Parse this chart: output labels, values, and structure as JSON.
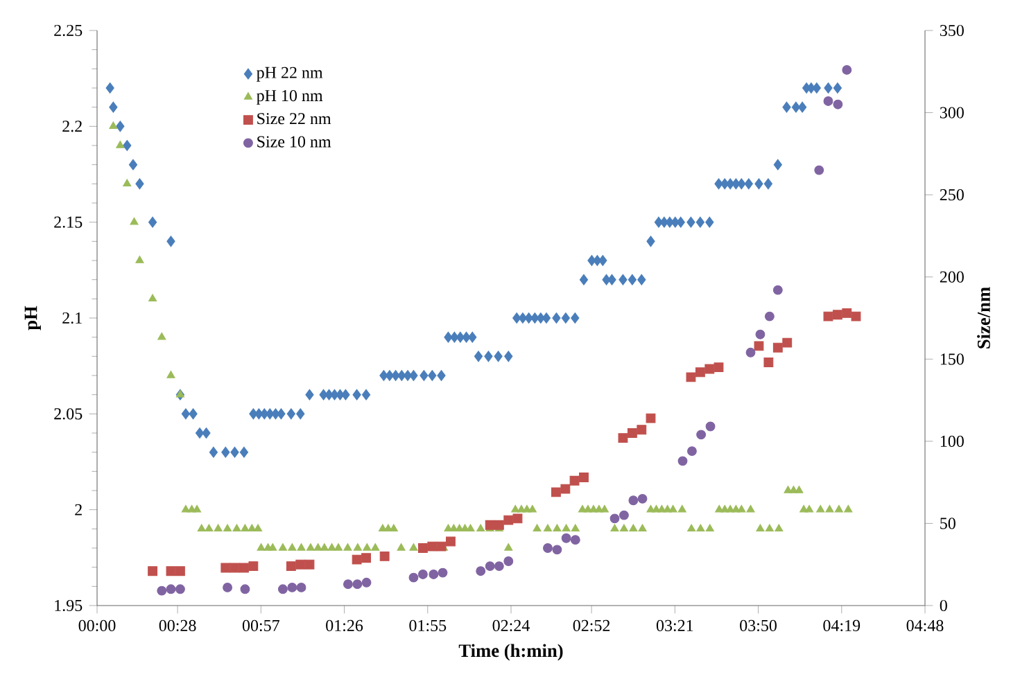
{
  "chart_data": {
    "type": "scatter",
    "xlabel": "Time (h:min)",
    "ylabel": "pH",
    "y2label": "Size/nm",
    "legend": "top left",
    "grid": false,
    "xlim": [
      0,
      4.8
    ],
    "ylim": [
      1.95,
      2.25
    ],
    "y2lim": [
      0,
      350
    ],
    "xticks": [
      {
        "value": 0,
        "label": "00:00"
      },
      {
        "value": 0.4667,
        "label": "00:28"
      },
      {
        "value": 0.95,
        "label": "00:57"
      },
      {
        "value": 1.4333,
        "label": "01:26"
      },
      {
        "value": 1.9167,
        "label": "01:55"
      },
      {
        "value": 2.4,
        "label": "02:24"
      },
      {
        "value": 2.8667,
        "label": "02:52"
      },
      {
        "value": 3.35,
        "label": "03:21"
      },
      {
        "value": 3.8333,
        "label": "03:50"
      },
      {
        "value": 4.3167,
        "label": "04:19"
      },
      {
        "value": 4.8,
        "label": "04:48"
      }
    ],
    "yticks": [
      1.95,
      2,
      2.05,
      2.1,
      2.15,
      2.2,
      2.25
    ],
    "y2ticks": [
      0,
      50,
      100,
      150,
      200,
      250,
      300,
      350
    ],
    "series": [
      {
        "name": "pH 22 nm",
        "color": "#4a7ebb",
        "marker": "diamond",
        "x": [
          0.075,
          0.094,
          0.134,
          0.174,
          0.209,
          0.247,
          0.322,
          0.428,
          0.482,
          0.514,
          0.557,
          0.595,
          0.633,
          0.675,
          0.745,
          0.798,
          0.852,
          0.906,
          0.938,
          0.97,
          1.002,
          1.035,
          1.067,
          1.125,
          1.179,
          1.232,
          1.313,
          1.345,
          1.377,
          1.409,
          1.441,
          1.506,
          1.56,
          1.662,
          1.696,
          1.731,
          1.766,
          1.801,
          1.835,
          1.895,
          1.943,
          1.996,
          2.036,
          2.072,
          2.106,
          2.141,
          2.176,
          2.211,
          2.269,
          2.326,
          2.385,
          2.433,
          2.468,
          2.503,
          2.538,
          2.572,
          2.605,
          2.663,
          2.717,
          2.771,
          2.822,
          2.868,
          2.9,
          2.932,
          2.953,
          2.985,
          3.049,
          3.103,
          3.157,
          3.21,
          3.256,
          3.288,
          3.32,
          3.352,
          3.384,
          3.443,
          3.497,
          3.551,
          3.604,
          3.639,
          3.671,
          3.704,
          3.736,
          3.778,
          3.837,
          3.891,
          3.947,
          3.998,
          4.052,
          4.089,
          4.113,
          4.14,
          4.172,
          4.239,
          4.293
        ],
        "values": [
          2.22,
          2.21,
          2.2,
          2.19,
          2.18,
          2.17,
          2.15,
          2.14,
          2.06,
          2.05,
          2.05,
          2.04,
          2.04,
          2.03,
          2.03,
          2.03,
          2.03,
          2.05,
          2.05,
          2.05,
          2.05,
          2.05,
          2.05,
          2.05,
          2.05,
          2.06,
          2.06,
          2.06,
          2.06,
          2.06,
          2.06,
          2.06,
          2.06,
          2.07,
          2.07,
          2.07,
          2.07,
          2.07,
          2.07,
          2.07,
          2.07,
          2.07,
          2.09,
          2.09,
          2.09,
          2.09,
          2.09,
          2.08,
          2.08,
          2.08,
          2.08,
          2.1,
          2.1,
          2.1,
          2.1,
          2.1,
          2.1,
          2.1,
          2.1,
          2.1,
          2.12,
          2.13,
          2.13,
          2.13,
          2.12,
          2.12,
          2.12,
          2.12,
          2.12,
          2.14,
          2.15,
          2.15,
          2.15,
          2.15,
          2.15,
          2.15,
          2.15,
          2.15,
          2.17,
          2.17,
          2.17,
          2.17,
          2.17,
          2.17,
          2.17,
          2.17,
          2.18,
          2.21,
          2.21,
          2.21,
          2.22,
          2.22,
          2.22,
          2.22,
          2.22
        ]
      },
      {
        "name": "pH 10 nm",
        "color": "#9bbb59",
        "marker": "triangle",
        "x": [
          0.094,
          0.134,
          0.174,
          0.215,
          0.247,
          0.322,
          0.375,
          0.428,
          0.482,
          0.514,
          0.549,
          0.579,
          0.606,
          0.649,
          0.702,
          0.756,
          0.81,
          0.858,
          0.898,
          0.933,
          0.951,
          0.991,
          1.018,
          1.077,
          1.131,
          1.184,
          1.238,
          1.281,
          1.318,
          1.361,
          1.399,
          1.453,
          1.511,
          1.565,
          1.613,
          1.656,
          1.688,
          1.72,
          1.763,
          1.835,
          1.903,
          1.956,
          2.01,
          2.036,
          2.068,
          2.101,
          2.133,
          2.165,
          2.224,
          2.278,
          2.331,
          2.385,
          2.425,
          2.46,
          2.492,
          2.524,
          2.551,
          2.613,
          2.667,
          2.72,
          2.773,
          2.814,
          2.846,
          2.878,
          2.91,
          2.942,
          3.001,
          3.055,
          3.109,
          3.162,
          3.21,
          3.242,
          3.274,
          3.307,
          3.339,
          3.392,
          3.446,
          3.499,
          3.553,
          3.607,
          3.639,
          3.671,
          3.704,
          3.736,
          3.789,
          3.845,
          3.899,
          3.953,
          4.006,
          4.038,
          4.07,
          4.097,
          4.129,
          4.194,
          4.247,
          4.301,
          4.355
        ],
        "values": [
          2.2,
          2.19,
          2.17,
          2.15,
          2.13,
          2.11,
          2.09,
          2.07,
          2.06,
          2.0,
          2.0,
          2.0,
          1.99,
          1.99,
          1.99,
          1.99,
          1.99,
          1.99,
          1.99,
          1.99,
          1.98,
          1.98,
          1.98,
          1.98,
          1.98,
          1.98,
          1.98,
          1.98,
          1.98,
          1.98,
          1.98,
          1.98,
          1.98,
          1.98,
          1.98,
          1.99,
          1.99,
          1.99,
          1.98,
          1.98,
          1.98,
          1.98,
          1.98,
          1.99,
          1.99,
          1.99,
          1.99,
          1.99,
          1.99,
          1.99,
          1.99,
          1.98,
          2.0,
          2.0,
          2.0,
          2.0,
          1.99,
          1.99,
          1.99,
          1.99,
          1.99,
          2.0,
          2.0,
          2.0,
          2.0,
          2.0,
          1.99,
          1.99,
          1.99,
          1.99,
          2.0,
          2.0,
          2.0,
          2.0,
          2.0,
          2.0,
          1.99,
          1.99,
          1.99,
          2.0,
          2.0,
          2.0,
          2.0,
          2.0,
          2.0,
          1.99,
          1.99,
          1.99,
          2.01,
          2.01,
          2.01,
          2.0,
          2.0,
          2.0,
          2.0,
          2.0,
          2.0
        ]
      },
      {
        "name": "Size 22 nm",
        "color": "#c0504d",
        "marker": "square",
        "axis": "y2",
        "x": [
          0.322,
          0.428,
          0.482,
          0.745,
          0.798,
          0.852,
          0.906,
          1.125,
          1.179,
          1.232,
          1.506,
          1.56,
          1.667,
          1.889,
          1.943,
          1.996,
          2.05,
          2.278,
          2.331,
          2.385,
          2.438,
          2.661,
          2.715,
          2.768,
          2.822,
          3.049,
          3.103,
          3.157,
          3.21,
          3.443,
          3.497,
          3.551,
          3.604,
          3.837,
          3.893,
          3.947,
          4.001,
          4.239,
          4.293,
          4.347,
          4.4
        ],
        "values": [
          21,
          21,
          21,
          23,
          23,
          23,
          24,
          24,
          25,
          25,
          28,
          29,
          30,
          35,
          36,
          36,
          39,
          49,
          49,
          52,
          53,
          69,
          71,
          76,
          78,
          102,
          105,
          107,
          114,
          139,
          142,
          144,
          145,
          158,
          148,
          157,
          160,
          176,
          177,
          178,
          176
        ]
      },
      {
        "name": "Size 10 nm",
        "color": "#8064a2",
        "marker": "circle",
        "axis": "y2",
        "x": [
          0.375,
          0.428,
          0.482,
          0.756,
          0.858,
          1.077,
          1.131,
          1.184,
          1.455,
          1.509,
          1.562,
          1.835,
          1.889,
          1.951,
          2.004,
          2.224,
          2.278,
          2.331,
          2.385,
          2.613,
          2.667,
          2.72,
          2.773,
          3.001,
          3.055,
          3.109,
          3.162,
          3.395,
          3.449,
          3.502,
          3.556,
          3.789,
          3.845,
          3.899,
          3.947,
          4.186,
          4.239,
          4.295,
          4.347
        ],
        "values": [
          9,
          10,
          10,
          11,
          10,
          10,
          11,
          11,
          13,
          13,
          14,
          17,
          19,
          19,
          20,
          21,
          24,
          24,
          27,
          35,
          34,
          41,
          40,
          53,
          55,
          64,
          65,
          88,
          94,
          104,
          109,
          154,
          165,
          176,
          192,
          265,
          307,
          305,
          326
        ]
      }
    ]
  }
}
